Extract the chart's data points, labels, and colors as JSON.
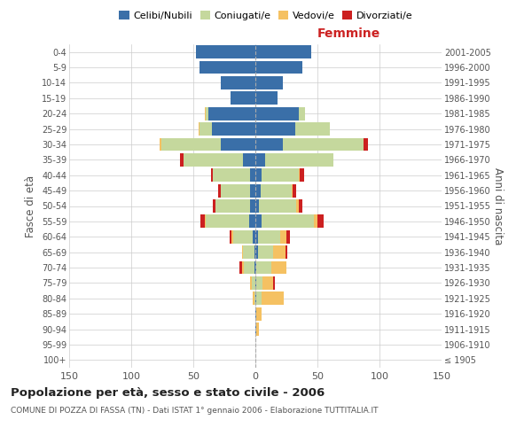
{
  "age_groups": [
    "100+",
    "95-99",
    "90-94",
    "85-89",
    "80-84",
    "75-79",
    "70-74",
    "65-69",
    "60-64",
    "55-59",
    "50-54",
    "45-49",
    "40-44",
    "35-39",
    "30-34",
    "25-29",
    "20-24",
    "15-19",
    "10-14",
    "5-9",
    "0-4"
  ],
  "birth_years": [
    "≤ 1905",
    "1906-1910",
    "1911-1915",
    "1916-1920",
    "1921-1925",
    "1926-1930",
    "1931-1935",
    "1936-1940",
    "1941-1945",
    "1946-1950",
    "1951-1955",
    "1956-1960",
    "1961-1965",
    "1966-1970",
    "1971-1975",
    "1976-1980",
    "1981-1985",
    "1986-1990",
    "1991-1995",
    "1996-2000",
    "2001-2005"
  ],
  "colors": {
    "celibi": "#3a6fa8",
    "coniugati": "#c5d89d",
    "vedovi": "#f5c162",
    "divorziati": "#cc2020"
  },
  "males": {
    "celibi": [
      0,
      0,
      0,
      0,
      0,
      0,
      1,
      1,
      2,
      5,
      4,
      4,
      4,
      10,
      28,
      35,
      38,
      20,
      28,
      45,
      48
    ],
    "coniugati": [
      0,
      0,
      0,
      0,
      1,
      3,
      8,
      9,
      16,
      35,
      28,
      24,
      30,
      48,
      48,
      10,
      2,
      0,
      0,
      0,
      0
    ],
    "vedovi": [
      0,
      0,
      0,
      0,
      1,
      1,
      2,
      1,
      1,
      1,
      0,
      0,
      0,
      0,
      1,
      1,
      1,
      0,
      0,
      0,
      0
    ],
    "divorziati": [
      0,
      0,
      0,
      0,
      0,
      0,
      2,
      0,
      2,
      3,
      2,
      2,
      2,
      3,
      0,
      0,
      0,
      0,
      0,
      0,
      0
    ]
  },
  "females": {
    "nubili": [
      0,
      0,
      1,
      1,
      1,
      1,
      1,
      2,
      2,
      5,
      3,
      4,
      5,
      8,
      22,
      32,
      35,
      18,
      22,
      38,
      45
    ],
    "coniugate": [
      0,
      0,
      0,
      0,
      4,
      5,
      12,
      12,
      18,
      42,
      30,
      25,
      30,
      55,
      65,
      28,
      5,
      0,
      0,
      0,
      0
    ],
    "vedove": [
      0,
      0,
      2,
      4,
      18,
      8,
      12,
      10,
      5,
      3,
      2,
      1,
      1,
      0,
      0,
      0,
      0,
      0,
      0,
      0,
      0
    ],
    "divorziate": [
      0,
      0,
      0,
      0,
      0,
      2,
      0,
      2,
      3,
      5,
      3,
      3,
      3,
      0,
      4,
      0,
      0,
      0,
      0,
      0,
      0
    ]
  },
  "xlim": 150,
  "title": "Popolazione per età, sesso e stato civile - 2006",
  "subtitle": "COMUNE DI POZZA DI FASSA (TN) - Dati ISTAT 1° gennaio 2006 - Elaborazione TUTTITALIA.IT",
  "ylabel_left": "Fasce di età",
  "ylabel_right": "Anni di nascita",
  "femmine_label": "Femmine",
  "bg_color": "#ffffff",
  "grid_color": "#cccccc",
  "bar_height": 0.85
}
